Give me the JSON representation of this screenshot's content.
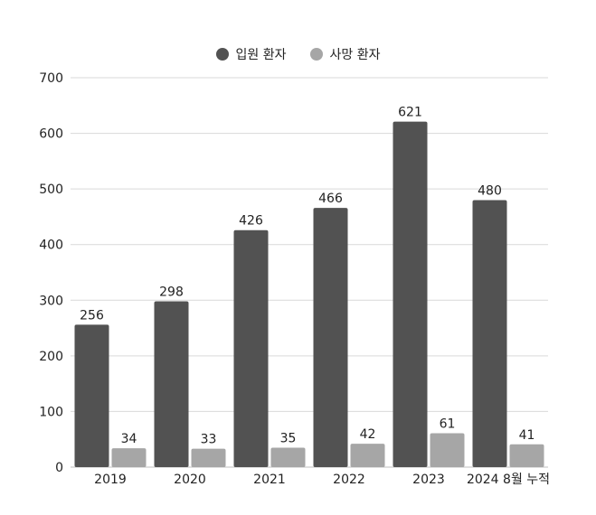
{
  "colors": {
    "admitted": "#525252",
    "deaths": "#a6a6a6",
    "grid": "#d9d9d9",
    "text": "#222222"
  },
  "chart_data": {
    "type": "bar",
    "categories": [
      "2019",
      "2020",
      "2021",
      "2022",
      "2023",
      "2024 8월 누적"
    ],
    "series": [
      {
        "name": "입원 환자",
        "values": [
          256,
          298,
          426,
          466,
          621,
          480
        ],
        "color": "#525252"
      },
      {
        "name": "사망 환자",
        "values": [
          34,
          33,
          35,
          42,
          61,
          41
        ],
        "color": "#a6a6a6"
      }
    ],
    "ylim": [
      0,
      700
    ],
    "yticks": [
      0,
      100,
      200,
      300,
      400,
      500,
      600,
      700
    ],
    "grid": true,
    "legend_position": "top-center",
    "title": "",
    "xlabel": "",
    "ylabel": ""
  }
}
